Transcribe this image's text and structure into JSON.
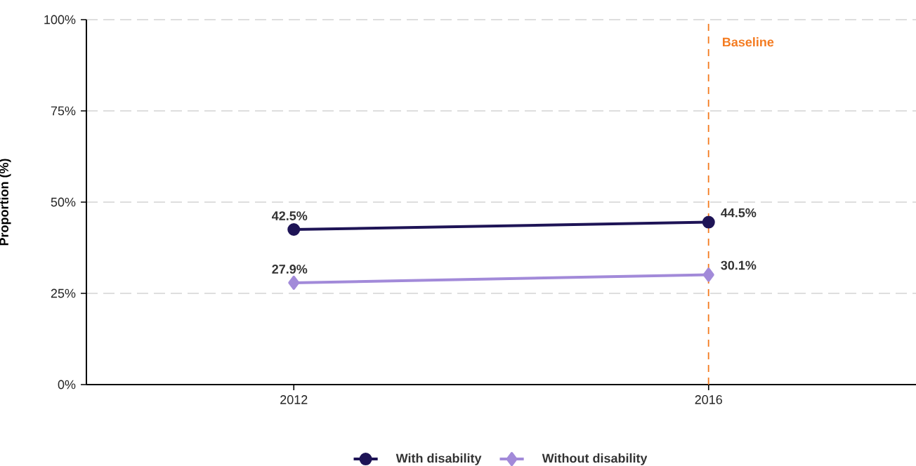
{
  "chart_data": {
    "type": "line",
    "ylabel": "Proportion (%)",
    "x": [
      2012,
      2016
    ],
    "xlim": [
      2010,
      2018
    ],
    "xticks": [
      2012,
      2016
    ],
    "ylim": [
      0,
      100
    ],
    "yticks": [
      {
        "value": 0,
        "label": "0%"
      },
      {
        "value": 25,
        "label": "25%"
      },
      {
        "value": 50,
        "label": "50%"
      },
      {
        "value": 75,
        "label": "75%"
      },
      {
        "value": 100,
        "label": "100%"
      }
    ],
    "series": [
      {
        "name": "With disability",
        "color": "#1e1456",
        "marker": "circle",
        "values": [
          42.5,
          44.5
        ],
        "value_labels": [
          "42.5%",
          "44.5%"
        ]
      },
      {
        "name": "Without disability",
        "color": "#a28ad9",
        "marker": "diamond",
        "values": [
          27.9,
          30.1
        ],
        "value_labels": [
          "27.9%",
          "30.1%"
        ]
      }
    ],
    "ref_lines": [
      {
        "axis": "x",
        "value": 2016,
        "label": "Baseline",
        "color": "#f47b20",
        "line_style": "dashed"
      }
    ],
    "grid": "y",
    "legend": "bottom"
  }
}
